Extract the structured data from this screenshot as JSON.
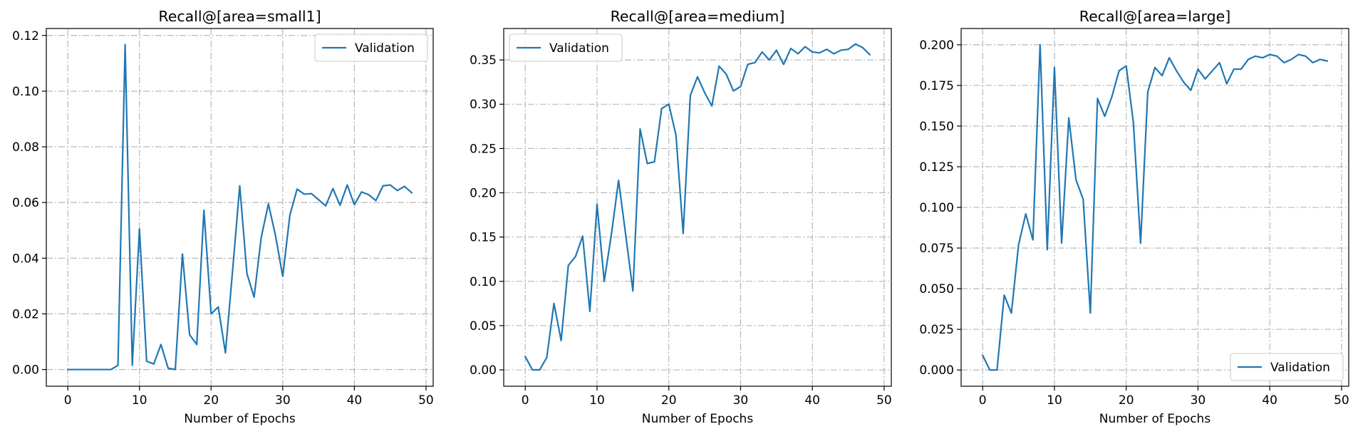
{
  "chart_data": [
    {
      "type": "line",
      "title": "Recall@[area=small1]",
      "xlabel": "Number of Epochs",
      "ylabel": "",
      "xlim": [
        -3,
        51
      ],
      "ylim": [
        -0.006,
        0.1225
      ],
      "xticks": [
        0,
        10,
        20,
        30,
        40,
        50
      ],
      "yticks": [
        0.0,
        0.02,
        0.04,
        0.06,
        0.08,
        0.1,
        0.12
      ],
      "ytick_labels": [
        "0.00",
        "0.02",
        "0.04",
        "0.06",
        "0.08",
        "0.10",
        "0.12"
      ],
      "grid": true,
      "legend_position": "top-right",
      "series": [
        {
          "name": "Validation",
          "color": "#1f77b4",
          "x": [
            0,
            1,
            2,
            3,
            4,
            5,
            6,
            7,
            8,
            9,
            10,
            11,
            12,
            13,
            14,
            15,
            16,
            17,
            18,
            19,
            20,
            21,
            22,
            23,
            24,
            25,
            26,
            27,
            28,
            29,
            30,
            31,
            32,
            33,
            34,
            35,
            36,
            37,
            38,
            39,
            40,
            41,
            42,
            43,
            44,
            45,
            46,
            47,
            48
          ],
          "y": [
            0,
            0,
            0,
            0,
            0,
            0,
            0,
            0.0015,
            0.1167,
            0.0015,
            0.0505,
            0.003,
            0.002,
            0.009,
            0.0005,
            0,
            0.0415,
            0.0125,
            0.009,
            0.0572,
            0.02,
            0.0225,
            0.006,
            0.0355,
            0.066,
            0.0345,
            0.026,
            0.0475,
            0.0595,
            0.048,
            0.0335,
            0.0555,
            0.0648,
            0.063,
            0.0632,
            0.061,
            0.0588,
            0.065,
            0.059,
            0.0663,
            0.0592,
            0.0638,
            0.0628,
            0.0607,
            0.066,
            0.0663,
            0.0643,
            0.0658,
            0.0635
          ]
        }
      ]
    },
    {
      "type": "line",
      "title": "Recall@[area=medium]",
      "xlabel": "Number of Epochs",
      "ylabel": "",
      "xlim": [
        -3,
        51
      ],
      "ylim": [
        -0.0185,
        0.3855
      ],
      "xticks": [
        0,
        10,
        20,
        30,
        40,
        50
      ],
      "yticks": [
        0.0,
        0.05,
        0.1,
        0.15,
        0.2,
        0.25,
        0.3,
        0.35
      ],
      "ytick_labels": [
        "0.00",
        "0.05",
        "0.10",
        "0.15",
        "0.20",
        "0.25",
        "0.30",
        "0.35"
      ],
      "grid": true,
      "legend_position": "top-left",
      "series": [
        {
          "name": "Validation",
          "color": "#1f77b4",
          "x": [
            0,
            1,
            2,
            3,
            4,
            5,
            6,
            7,
            8,
            9,
            10,
            11,
            12,
            13,
            14,
            15,
            16,
            17,
            18,
            19,
            20,
            21,
            22,
            23,
            24,
            25,
            26,
            27,
            28,
            29,
            30,
            31,
            32,
            33,
            34,
            35,
            36,
            37,
            38,
            39,
            40,
            41,
            42,
            43,
            44,
            45,
            46,
            47,
            48
          ],
          "y": [
            0.015,
            0,
            0,
            0.014,
            0.075,
            0.033,
            0.118,
            0.128,
            0.151,
            0.066,
            0.187,
            0.1,
            0.153,
            0.214,
            0.152,
            0.089,
            0.272,
            0.233,
            0.235,
            0.295,
            0.3,
            0.265,
            0.154,
            0.31,
            0.331,
            0.313,
            0.298,
            0.343,
            0.334,
            0.315,
            0.32,
            0.345,
            0.347,
            0.359,
            0.35,
            0.361,
            0.345,
            0.363,
            0.357,
            0.365,
            0.359,
            0.358,
            0.362,
            0.357,
            0.361,
            0.362,
            0.368,
            0.364,
            0.356
          ]
        }
      ]
    },
    {
      "type": "line",
      "title": "Recall@[area=large]",
      "xlabel": "Number of Epochs",
      "ylabel": "",
      "xlim": [
        -3,
        51
      ],
      "ylim": [
        -0.01,
        0.21
      ],
      "xticks": [
        0,
        10,
        20,
        30,
        40,
        50
      ],
      "yticks": [
        0.0,
        0.025,
        0.05,
        0.075,
        0.1,
        0.125,
        0.15,
        0.175,
        0.2
      ],
      "ytick_labels": [
        "0.000",
        "0.025",
        "0.050",
        "0.075",
        "0.100",
        "0.125",
        "0.150",
        "0.175",
        "0.200"
      ],
      "grid": true,
      "legend_position": "bottom-right",
      "series": [
        {
          "name": "Validation",
          "color": "#1f77b4",
          "x": [
            0,
            1,
            2,
            3,
            4,
            5,
            6,
            7,
            8,
            9,
            10,
            11,
            12,
            13,
            14,
            15,
            16,
            17,
            18,
            19,
            20,
            21,
            22,
            23,
            24,
            25,
            26,
            27,
            28,
            29,
            30,
            31,
            32,
            33,
            34,
            35,
            36,
            37,
            38,
            39,
            40,
            41,
            42,
            43,
            44,
            45,
            46,
            47,
            48
          ],
          "y": [
            0.009,
            0,
            0,
            0.046,
            0.035,
            0.077,
            0.096,
            0.08,
            0.2,
            0.074,
            0.186,
            0.078,
            0.155,
            0.117,
            0.105,
            0.035,
            0.167,
            0.156,
            0.168,
            0.184,
            0.187,
            0.152,
            0.078,
            0.171,
            0.186,
            0.181,
            0.192,
            0.184,
            0.177,
            0.172,
            0.185,
            0.179,
            0.184,
            0.189,
            0.176,
            0.185,
            0.185,
            0.191,
            0.193,
            0.192,
            0.194,
            0.193,
            0.189,
            0.191,
            0.194,
            0.193,
            0.189,
            0.191,
            0.19
          ]
        }
      ]
    }
  ]
}
